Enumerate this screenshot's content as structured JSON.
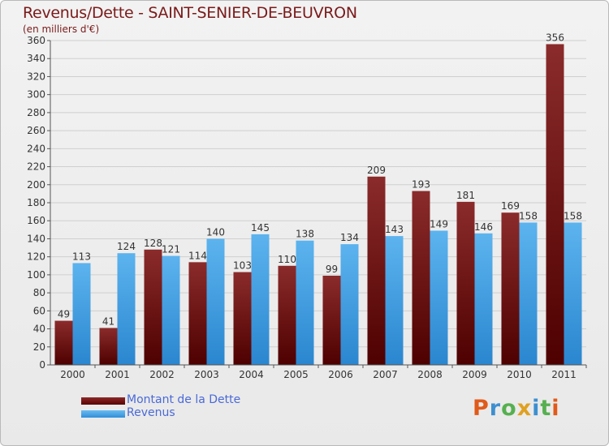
{
  "title": "Revenus/Dette - SAINT-SENIER-DE-BEUVRON",
  "subtitle": "(en milliers d'€)",
  "logo": "Proxiti",
  "colors": {
    "dette": "#6d1010",
    "revenus": "#4aa3e6",
    "title": "#7a1a1a",
    "legend_text": "#4a6ad8"
  },
  "chart_data": {
    "type": "bar",
    "categories": [
      "2000",
      "2001",
      "2002",
      "2003",
      "2004",
      "2005",
      "2006",
      "2007",
      "2008",
      "2009",
      "2010",
      "2011"
    ],
    "series": [
      {
        "name": "Montant de la Dette",
        "values": [
          49,
          41,
          128,
          114,
          103,
          110,
          99,
          209,
          193,
          181,
          169,
          356
        ]
      },
      {
        "name": "Revenus",
        "values": [
          113,
          124,
          121,
          140,
          145,
          138,
          134,
          143,
          149,
          146,
          158,
          158
        ]
      }
    ],
    "ylim": [
      0,
      360
    ],
    "yticks": [
      0,
      20,
      40,
      60,
      80,
      100,
      120,
      140,
      160,
      180,
      200,
      220,
      240,
      260,
      280,
      300,
      320,
      340,
      360
    ],
    "grid": true,
    "legend_position": "bottom-left"
  }
}
